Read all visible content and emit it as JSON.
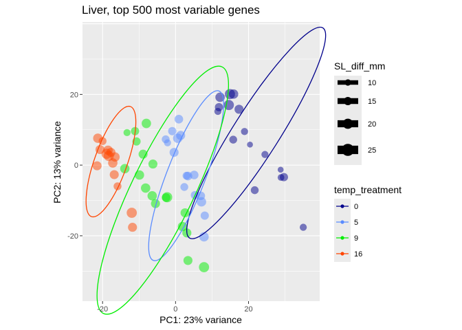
{
  "chart_data": {
    "type": "scatter",
    "title": "Liver, top 500 most variable genes",
    "xlabel": "PC1: 23% variance",
    "ylabel": "PC2: 13% variance",
    "xlim": [
      -25.5,
      39.5
    ],
    "ylim": [
      -38.5,
      40.5
    ],
    "x_ticks": [
      -20,
      0,
      20
    ],
    "y_ticks": [
      -20,
      0,
      20
    ],
    "grid": true,
    "legend_placement": "right",
    "size_legend": {
      "title": "SL_diff_mm",
      "values": [
        10,
        15,
        20,
        25
      ]
    },
    "color_legend": {
      "title": "temp_treatment",
      "entries": [
        {
          "label": "0",
          "color": "#00008B"
        },
        {
          "label": "5",
          "color": "#5A8CFF"
        },
        {
          "label": "9",
          "color": "#00EE00"
        },
        {
          "label": "16",
          "color": "#FF4500"
        }
      ]
    },
    "series": [
      {
        "treatment": "0",
        "color": "#00008B",
        "points": [
          {
            "x": 12.2,
            "y": 19.2,
            "s": 18
          },
          {
            "x": 14.9,
            "y": 20.1,
            "s": 20
          },
          {
            "x": 15.9,
            "y": 20.1,
            "s": 18
          },
          {
            "x": 11.9,
            "y": 16.4,
            "s": 15
          },
          {
            "x": 11.6,
            "y": 15.2,
            "s": 12
          },
          {
            "x": 14.6,
            "y": 17.0,
            "s": 20
          },
          {
            "x": 17.4,
            "y": 15.8,
            "s": 17
          },
          {
            "x": 18.9,
            "y": 9.5,
            "s": 12
          },
          {
            "x": 15.8,
            "y": 7.2,
            "s": 14
          },
          {
            "x": 20.4,
            "y": 5.8,
            "s": 9
          },
          {
            "x": 24.5,
            "y": 3.0,
            "s": 12
          },
          {
            "x": 28.8,
            "y": -1.3,
            "s": 9
          },
          {
            "x": 28.9,
            "y": -3.5,
            "s": 11
          },
          {
            "x": 29.7,
            "y": -3.4,
            "s": 15
          },
          {
            "x": 21.7,
            "y": -7.1,
            "s": 14
          },
          {
            "x": 35.0,
            "y": -17.6,
            "s": 12
          }
        ]
      },
      {
        "treatment": "5",
        "color": "#5A8CFF",
        "points": [
          {
            "x": 0.9,
            "y": 13.0,
            "s": 16
          },
          {
            "x": -0.9,
            "y": 9.6,
            "s": 15
          },
          {
            "x": 1.4,
            "y": 8.4,
            "s": 17
          },
          {
            "x": 0.6,
            "y": 7.6,
            "s": 18
          },
          {
            "x": -2.7,
            "y": 7.3,
            "s": 14
          },
          {
            "x": -2.2,
            "y": 6.3,
            "s": 12
          },
          {
            "x": -0.4,
            "y": 3.6,
            "s": 17
          },
          {
            "x": 3.0,
            "y": -3.0,
            "s": 14
          },
          {
            "x": 3.4,
            "y": -3.1,
            "s": 16
          },
          {
            "x": 5.1,
            "y": -2.8,
            "s": 16
          },
          {
            "x": 2.4,
            "y": -6.2,
            "s": 14
          },
          {
            "x": 5.3,
            "y": -8.5,
            "s": 15
          },
          {
            "x": 6.9,
            "y": -8.7,
            "s": 16
          },
          {
            "x": 7.1,
            "y": -10.4,
            "s": 18
          },
          {
            "x": 8.0,
            "y": -14.3,
            "s": 15
          },
          {
            "x": 7.8,
            "y": -20.3,
            "s": 18
          }
        ]
      },
      {
        "treatment": "9",
        "color": "#00EE00",
        "points": [
          {
            "x": -8.0,
            "y": 11.8,
            "s": 18
          },
          {
            "x": -11.1,
            "y": 9.6,
            "s": 15
          },
          {
            "x": -13.3,
            "y": 9.2,
            "s": 12
          },
          {
            "x": -10.7,
            "y": 6.7,
            "s": 15
          },
          {
            "x": -8.9,
            "y": 3.1,
            "s": 17
          },
          {
            "x": -6.2,
            "y": 0.3,
            "s": 17
          },
          {
            "x": -13.9,
            "y": -1.0,
            "s": 18
          },
          {
            "x": -9.9,
            "y": -2.8,
            "s": 18
          },
          {
            "x": -8.2,
            "y": -6.5,
            "s": 18
          },
          {
            "x": -6.4,
            "y": -8.7,
            "s": 18
          },
          {
            "x": -5.5,
            "y": -10.9,
            "s": 17
          },
          {
            "x": -2.3,
            "y": -9.1,
            "s": 20
          },
          {
            "x": -2.6,
            "y": -9.2,
            "s": 16
          },
          {
            "x": 2.6,
            "y": -13.5,
            "s": 17
          },
          {
            "x": 1.9,
            "y": -17.4,
            "s": 18
          },
          {
            "x": 3.1,
            "y": -19.2,
            "s": 17
          },
          {
            "x": 3.4,
            "y": -27.0,
            "s": 17
          },
          {
            "x": 7.8,
            "y": -28.9,
            "s": 20
          }
        ]
      },
      {
        "treatment": "16",
        "color": "#FF4500",
        "points": [
          {
            "x": -21.3,
            "y": 7.6,
            "s": 18
          },
          {
            "x": -20.0,
            "y": 6.8,
            "s": 14
          },
          {
            "x": -20.7,
            "y": 4.4,
            "s": 17
          },
          {
            "x": -18.5,
            "y": 4.2,
            "s": 18
          },
          {
            "x": -18.9,
            "y": 3.2,
            "s": 20
          },
          {
            "x": -17.7,
            "y": 3.6,
            "s": 17
          },
          {
            "x": -18.3,
            "y": 2.6,
            "s": 20
          },
          {
            "x": -16.6,
            "y": 2.3,
            "s": 18
          },
          {
            "x": -17.2,
            "y": 0.6,
            "s": 18
          },
          {
            "x": -21.5,
            "y": -0.2,
            "s": 17
          },
          {
            "x": -16.8,
            "y": -2.7,
            "s": 17
          },
          {
            "x": -15.9,
            "y": -6.0,
            "s": 14
          },
          {
            "x": -12.0,
            "y": -13.5,
            "s": 20
          },
          {
            "x": -11.8,
            "y": -17.6,
            "s": 17
          }
        ]
      }
    ],
    "ellipses": [
      {
        "treatment": "0",
        "color": "#00008B",
        "cx": 22.1,
        "cy": 9.1,
        "rx": 34.1,
        "ry": 6.3,
        "angle": -57.6
      },
      {
        "treatment": "5",
        "color": "#5A8CFF",
        "cx": 2.9,
        "cy": -3.0,
        "rx": 24.9,
        "ry": 5.3,
        "angle": -68.8
      },
      {
        "treatment": "9",
        "color": "#00EE00",
        "cx": -3.5,
        "cy": -7.1,
        "rx": 37.5,
        "ry": 8.6,
        "angle": -64.3
      },
      {
        "treatment": "16",
        "color": "#FF4500",
        "cx": -17.7,
        "cy": 1.0,
        "rx": 16.0,
        "ry": 4.5,
        "angle": -70.5
      }
    ]
  }
}
